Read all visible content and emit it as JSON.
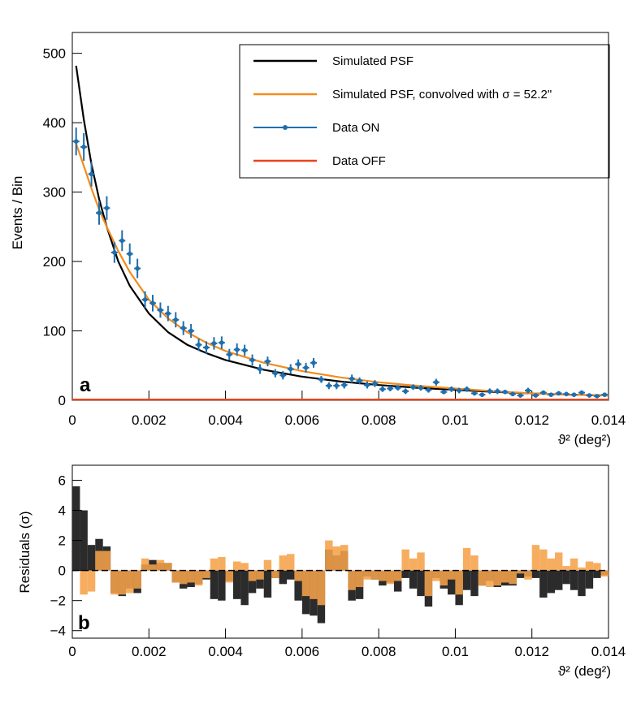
{
  "chart_data": [
    {
      "id": "a",
      "panel_label": "a",
      "type": "line",
      "title": "",
      "xlabel": "ϑ² (deg²)",
      "ylabel": "Events / Bin",
      "xlim": [
        0,
        0.014
      ],
      "ylim": [
        0,
        530
      ],
      "grid": false,
      "legend_position": "top-right",
      "xticks": [
        0,
        0.002,
        0.004,
        0.006,
        0.008,
        0.01,
        0.012,
        0.014
      ],
      "xtick_labels": [
        "0",
        "0.002",
        "0.004",
        "0.006",
        "0.008",
        "0.01",
        "0.012",
        "0.014"
      ],
      "yticks": [
        0,
        100,
        200,
        300,
        400,
        500
      ],
      "ytick_labels": [
        "0",
        "100",
        "200",
        "300",
        "400",
        "500"
      ],
      "series": [
        {
          "name": "Simulated PSF",
          "kind": "line",
          "color": "#000000",
          "x": [
            0.0001,
            0.0003,
            0.0005,
            0.0007,
            0.0009,
            0.0012,
            0.0015,
            0.002,
            0.0025,
            0.003,
            0.0035,
            0.004,
            0.005,
            0.006,
            0.007,
            0.008,
            0.009,
            0.01,
            0.011,
            0.012,
            0.013,
            0.014
          ],
          "y": [
            482,
            405,
            340,
            290,
            250,
            200,
            165,
            125,
            98,
            80,
            68,
            58,
            44,
            34,
            27,
            22,
            18,
            15,
            12,
            10,
            8,
            7
          ]
        },
        {
          "name": "Simulated PSF, convolved with σ = 52.2\"",
          "kind": "line",
          "color": "#f28c1e",
          "x": [
            0.0001,
            0.0003,
            0.0005,
            0.0007,
            0.0009,
            0.0012,
            0.0015,
            0.002,
            0.0025,
            0.003,
            0.0035,
            0.004,
            0.005,
            0.006,
            0.007,
            0.008,
            0.009,
            0.01,
            0.011,
            0.012,
            0.013,
            0.014
          ],
          "y": [
            370,
            338,
            305,
            275,
            250,
            215,
            185,
            145,
            118,
            98,
            83,
            71,
            54,
            42,
            33,
            26,
            21,
            17,
            13,
            10,
            8,
            7
          ]
        },
        {
          "name": "Data ON",
          "kind": "points",
          "color": "#1f6fad",
          "x": [
            0.0001,
            0.0003,
            0.0005,
            0.0007,
            0.0009,
            0.0011,
            0.0013,
            0.0015,
            0.0017,
            0.0019,
            0.0021,
            0.0023,
            0.0025,
            0.0027,
            0.0029,
            0.0031,
            0.0033,
            0.0035,
            0.0037,
            0.0039,
            0.0041,
            0.0043,
            0.0045,
            0.0047,
            0.0049,
            0.0051,
            0.0053,
            0.0055,
            0.0057,
            0.0059,
            0.0061,
            0.0063,
            0.0065,
            0.0067,
            0.0069,
            0.0071,
            0.0073,
            0.0075,
            0.0077,
            0.0079,
            0.0081,
            0.0083,
            0.0085,
            0.0087,
            0.0089,
            0.0091,
            0.0093,
            0.0095,
            0.0097,
            0.0099,
            0.0101,
            0.0103,
            0.0105,
            0.0107,
            0.0109,
            0.0111,
            0.0113,
            0.0115,
            0.0117,
            0.0119,
            0.0121,
            0.0123,
            0.0125,
            0.0127,
            0.0129,
            0.0131,
            0.0133,
            0.0135,
            0.0137,
            0.0139
          ],
          "y": [
            373,
            365,
            326,
            270,
            277,
            213,
            230,
            211,
            190,
            145,
            140,
            130,
            125,
            116,
            104,
            100,
            80,
            76,
            82,
            83,
            66,
            73,
            72,
            58,
            45,
            56,
            39,
            36,
            45,
            52,
            47,
            54,
            30,
            21,
            21,
            22,
            31,
            28,
            22,
            24,
            16,
            17,
            18,
            13,
            19,
            18,
            15,
            26,
            12,
            16,
            14,
            16,
            10,
            8,
            13,
            13,
            12,
            9,
            7,
            14,
            7,
            11,
            8,
            10,
            9,
            8,
            11,
            7,
            6,
            8
          ],
          "err": [
            20,
            20,
            18,
            17,
            17,
            15,
            15,
            15,
            14,
            12,
            12,
            11,
            11,
            11,
            10,
            10,
            9,
            9,
            9,
            9,
            8,
            9,
            8,
            8,
            7,
            7,
            6,
            6,
            7,
            7,
            7,
            7,
            5,
            5,
            5,
            5,
            6,
            5,
            5,
            5,
            4,
            4,
            4,
            4,
            4,
            4,
            4,
            5,
            3,
            4,
            4,
            4,
            3,
            3,
            4,
            4,
            3,
            3,
            3,
            4,
            3,
            3,
            3,
            3,
            3,
            3,
            3,
            3,
            2,
            3
          ]
        },
        {
          "name": "Data OFF",
          "kind": "line",
          "color": "#e8441c",
          "x": [
            0,
            0.014
          ],
          "y": [
            1,
            1
          ]
        }
      ]
    },
    {
      "id": "b",
      "panel_label": "b",
      "type": "bar",
      "title": "",
      "xlabel": "ϑ² (deg²)",
      "ylabel": "Residuals (σ)",
      "xlim": [
        0,
        0.014
      ],
      "ylim": [
        -4.5,
        7
      ],
      "grid": false,
      "xticks": [
        0,
        0.002,
        0.004,
        0.006,
        0.008,
        0.01,
        0.012,
        0.014
      ],
      "xtick_labels": [
        "0",
        "0.002",
        "0.004",
        "0.006",
        "0.008",
        "0.01",
        "0.012",
        "0.014"
      ],
      "yticks": [
        -4,
        -2,
        0,
        2,
        4,
        6
      ],
      "ytick_labels": [
        "−4",
        "−2",
        "0",
        "2",
        "4",
        "6"
      ],
      "bin_width": 0.0002,
      "x": [
        0.0001,
        0.0003,
        0.0005,
        0.0007,
        0.0009,
        0.0011,
        0.0013,
        0.0015,
        0.0017,
        0.0019,
        0.0021,
        0.0023,
        0.0025,
        0.0027,
        0.0029,
        0.0031,
        0.0033,
        0.0035,
        0.0037,
        0.0039,
        0.0041,
        0.0043,
        0.0045,
        0.0047,
        0.0049,
        0.0051,
        0.0053,
        0.0055,
        0.0057,
        0.0059,
        0.0061,
        0.0063,
        0.0065,
        0.0067,
        0.0069,
        0.0071,
        0.0073,
        0.0075,
        0.0077,
        0.0079,
        0.0081,
        0.0083,
        0.0085,
        0.0087,
        0.0089,
        0.0091,
        0.0093,
        0.0095,
        0.0097,
        0.0099,
        0.0101,
        0.0103,
        0.0105,
        0.0107,
        0.0109,
        0.0111,
        0.0113,
        0.0115,
        0.0117,
        0.0119,
        0.0121,
        0.0123,
        0.0125,
        0.0127,
        0.0129,
        0.0131,
        0.0133,
        0.0135,
        0.0137,
        0.0139
      ],
      "series": [
        {
          "name": "",
          "color": "#2b2b2b",
          "values": [
            5.6,
            4.0,
            1.7,
            2.1,
            1.6,
            -1.5,
            -1.7,
            -1.2,
            -1.5,
            0.4,
            0.7,
            0.5,
            0.5,
            -0.8,
            -1.2,
            -1.1,
            -0.9,
            -0.6,
            -1.9,
            -2.0,
            -0.7,
            -1.9,
            -2.3,
            -1.5,
            -1.2,
            -1.8,
            -0.5,
            -0.9,
            -0.6,
            -2.0,
            -2.9,
            -3.0,
            -3.5,
            1.4,
            1.0,
            1.3,
            -2.0,
            -1.9,
            -0.4,
            -0.6,
            -1.0,
            -0.8,
            -1.4,
            -0.5,
            -1.2,
            -1.7,
            -2.4,
            -0.5,
            -1.2,
            -1.6,
            -2.3,
            -1.3,
            -1.7,
            -1.0,
            -0.7,
            -1.1,
            -1.0,
            -1.0,
            -0.5,
            -0.4,
            -0.5,
            -1.8,
            -1.5,
            -1.3,
            -0.9,
            -1.3,
            -1.7,
            -1.2,
            -0.5,
            -0.3
          ],
          "label_note": ""
        },
        {
          "name": "",
          "color": "#f5a24a",
          "values": [
            0,
            -1.6,
            -1.4,
            1.3,
            1.3,
            -1.6,
            -1.6,
            -1.5,
            -1.2,
            0.8,
            0.4,
            0.7,
            0.5,
            -0.8,
            -0.9,
            -0.8,
            -1.0,
            -0.5,
            0.8,
            0.9,
            -0.8,
            0.6,
            0.5,
            -0.7,
            -0.6,
            0.7,
            -0.5,
            1.0,
            1.1,
            -0.7,
            -1.7,
            -1.9,
            -2.3,
            2.0,
            1.6,
            1.7,
            -1.3,
            -1.1,
            -0.6,
            -0.6,
            -0.7,
            -0.9,
            -0.7,
            1.4,
            0.8,
            1.2,
            -1.7,
            -0.7,
            -1.0,
            -0.6,
            -1.6,
            1.5,
            1.0,
            -1.0,
            -1.1,
            -1.0,
            -0.8,
            -0.9,
            -0.2,
            -0.6,
            1.7,
            1.4,
            0.8,
            1.2,
            0.3,
            0.8,
            0.2,
            0.6,
            0.5,
            -0.4
          ]
        }
      ]
    }
  ]
}
